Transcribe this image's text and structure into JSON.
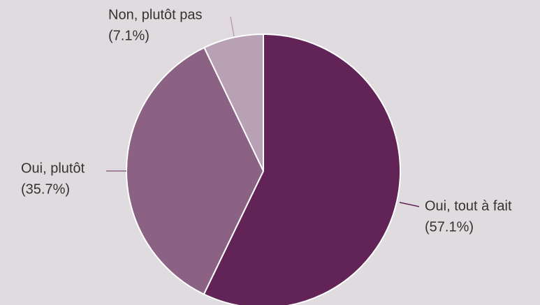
{
  "chart_data": {
    "type": "pie",
    "categories": [
      "Oui, tout à fait",
      "Oui, plutôt",
      "Non, plutôt pas"
    ],
    "values": [
      57.1,
      35.7,
      7.1
    ],
    "value_labels": [
      "(57.1%)",
      "(35.7%)",
      "(7.1%)"
    ],
    "colors": [
      "#622357",
      "#8b6283",
      "#b8a0b5"
    ]
  }
}
